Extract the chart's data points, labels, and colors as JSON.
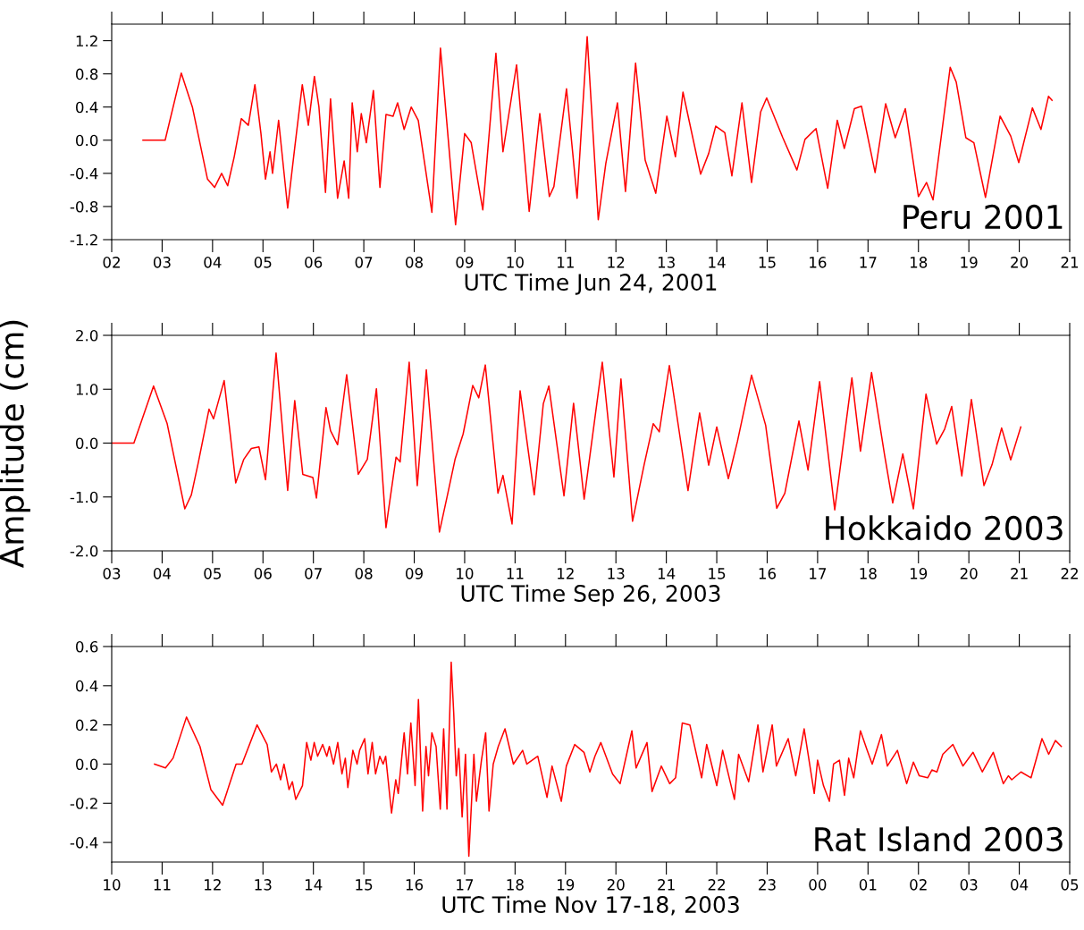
{
  "chart_data": [
    {
      "type": "line",
      "xlabel": "UTC Time Jun 24, 2001",
      "annotations": [
        "Peru 2001"
      ],
      "xlim": [
        2,
        21
      ],
      "ylim": [
        -1.2,
        1.4
      ],
      "xticks": [
        {
          "value": 2,
          "label": "02"
        },
        {
          "value": 3,
          "label": "03"
        },
        {
          "value": 4,
          "label": "04"
        },
        {
          "value": 5,
          "label": "05"
        },
        {
          "value": 6,
          "label": "06"
        },
        {
          "value": 7,
          "label": "07"
        },
        {
          "value": 8,
          "label": "08"
        },
        {
          "value": 9,
          "label": "09"
        },
        10,
        11,
        12,
        13,
        14,
        15,
        16,
        17,
        18,
        19,
        20,
        21
      ],
      "yticks": [
        {
          "value": -1.2,
          "label": "-1.2"
        },
        {
          "value": -0.8,
          "label": "-0.8"
        },
        {
          "value": -0.4,
          "label": "-0.4"
        },
        {
          "value": 0,
          "label": "0.0"
        },
        0.4,
        0.8,
        1.2
      ],
      "series": [
        {
          "color": "#ff0000",
          "x": [
            2.62,
            3.06,
            3.38,
            3.6,
            3.9,
            4.04,
            4.18,
            4.3,
            4.43,
            4.57,
            4.71,
            4.84,
            4.96,
            5.05,
            5.14,
            5.19,
            5.31,
            5.49,
            5.63,
            5.78,
            5.9,
            6.02,
            6.11,
            6.24,
            6.34,
            6.48,
            6.61,
            6.7,
            6.77,
            6.87,
            6.95,
            7.05,
            7.19,
            7.32,
            7.44,
            7.58,
            7.67,
            7.8,
            7.94,
            8.08,
            8.35,
            8.52,
            8.82,
            9.0,
            9.13,
            9.36,
            9.62,
            9.76,
            10.03,
            10.28,
            10.49,
            10.68,
            10.77,
            11.02,
            11.23,
            11.43,
            11.65,
            11.8,
            12.03,
            12.19,
            12.39,
            12.58,
            12.79,
            13.01,
            13.18,
            13.33,
            13.68,
            13.84,
            13.98,
            14.16,
            14.3,
            14.5,
            14.69,
            14.87,
            14.99,
            15.31,
            15.59,
            15.75,
            15.97,
            16.2,
            16.39,
            16.53,
            16.73,
            16.87,
            17.14,
            17.35,
            17.54,
            17.74,
            18.0,
            18.16,
            18.29,
            18.63,
            18.75,
            18.94,
            19.1,
            19.33,
            19.62,
            19.83,
            19.99,
            20.26,
            20.43,
            20.58,
            20.65
          ],
          "values": [
            0.0,
            0.0,
            0.81,
            0.4,
            -0.47,
            -0.57,
            -0.4,
            -0.55,
            -0.2,
            0.26,
            0.18,
            0.67,
            0.08,
            -0.47,
            -0.14,
            -0.4,
            0.24,
            -0.82,
            -0.09,
            0.67,
            0.18,
            0.77,
            0.4,
            -0.63,
            0.5,
            -0.7,
            -0.25,
            -0.7,
            0.45,
            -0.14,
            0.32,
            -0.03,
            0.6,
            -0.57,
            0.31,
            0.29,
            0.45,
            0.13,
            0.4,
            0.24,
            -0.87,
            1.11,
            -1.02,
            0.08,
            -0.03,
            -0.84,
            1.05,
            -0.14,
            0.91,
            -0.86,
            0.32,
            -0.68,
            -0.56,
            0.62,
            -0.7,
            1.25,
            -0.96,
            -0.28,
            0.45,
            -0.62,
            0.93,
            -0.24,
            -0.64,
            0.29,
            -0.2,
            0.58,
            -0.41,
            -0.16,
            0.17,
            0.09,
            -0.43,
            0.45,
            -0.51,
            0.34,
            0.51,
            0.03,
            -0.36,
            0.01,
            0.14,
            -0.58,
            0.24,
            -0.1,
            0.38,
            0.41,
            -0.39,
            0.44,
            0.03,
            0.38,
            -0.68,
            -0.51,
            -0.72,
            0.88,
            0.7,
            0.03,
            -0.03,
            -0.69,
            0.29,
            0.05,
            -0.27,
            0.39,
            0.13,
            0.53,
            0.48
          ]
        }
      ]
    },
    {
      "type": "line",
      "xlabel": "UTC Time Sep 26, 2003",
      "ylabel": "Amplitude (cm)",
      "annotations": [
        "Hokkaido 2003"
      ],
      "xlim": [
        3,
        22
      ],
      "ylim": [
        -2,
        2
      ],
      "xticks": [
        {
          "value": 3,
          "label": "03"
        },
        {
          "value": 4,
          "label": "04"
        },
        {
          "value": 5,
          "label": "05"
        },
        {
          "value": 6,
          "label": "06"
        },
        {
          "value": 7,
          "label": "07"
        },
        {
          "value": 8,
          "label": "08"
        },
        {
          "value": 9,
          "label": "09"
        },
        10,
        11,
        12,
        13,
        14,
        15,
        16,
        17,
        18,
        19,
        20,
        21,
        22
      ],
      "yticks": [
        {
          "value": -2,
          "label": "-2.0"
        },
        {
          "value": -1,
          "label": "-1.0"
        },
        {
          "value": 0,
          "label": "0.0"
        },
        {
          "value": 1,
          "label": "1.0"
        },
        {
          "value": 2,
          "label": "2.0"
        }
      ],
      "series": [
        {
          "color": "#ff0000",
          "x": [
            3.0,
            3.44,
            3.83,
            4.1,
            4.45,
            4.58,
            4.72,
            4.93,
            5.02,
            5.23,
            5.46,
            5.62,
            5.77,
            5.92,
            6.05,
            6.26,
            6.49,
            6.63,
            6.79,
            6.99,
            7.06,
            7.25,
            7.34,
            7.48,
            7.66,
            7.89,
            8.07,
            8.25,
            8.44,
            8.64,
            8.72,
            8.9,
            9.06,
            9.24,
            9.5,
            9.66,
            9.81,
            9.97,
            10.16,
            10.28,
            10.41,
            10.66,
            10.76,
            10.94,
            11.1,
            11.38,
            11.56,
            11.67,
            11.97,
            12.16,
            12.37,
            12.73,
            12.96,
            13.1,
            13.33,
            13.56,
            13.74,
            13.86,
            14.06,
            14.43,
            14.66,
            14.84,
            15.0,
            15.23,
            15.41,
            15.69,
            15.97,
            16.19,
            16.35,
            16.63,
            16.81,
            17.04,
            17.34,
            17.68,
            17.85,
            18.07,
            18.33,
            18.49,
            18.69,
            18.9,
            19.15,
            19.36,
            19.52,
            19.66,
            19.86,
            20.05,
            20.3,
            20.46,
            20.65,
            20.83,
            21.03
          ],
          "values": [
            0,
            0,
            1.06,
            0.36,
            -1.22,
            -0.96,
            -0.35,
            0.63,
            0.45,
            1.16,
            -0.74,
            -0.3,
            -0.1,
            -0.07,
            -0.68,
            1.67,
            -0.88,
            0.79,
            -0.58,
            -0.64,
            -1.02,
            0.66,
            0.23,
            -0.03,
            1.27,
            -0.58,
            -0.3,
            1.01,
            -1.57,
            -0.26,
            -0.35,
            1.5,
            -0.79,
            1.36,
            -1.65,
            -0.96,
            -0.3,
            0.17,
            1.07,
            0.84,
            1.45,
            -0.93,
            -0.6,
            -1.5,
            0.97,
            -0.96,
            0.73,
            1.06,
            -0.98,
            0.74,
            -1.04,
            1.5,
            -0.63,
            1.19,
            -1.45,
            -0.4,
            0.36,
            0.21,
            1.44,
            -0.88,
            0.56,
            -0.41,
            0.3,
            -0.66,
            0.03,
            1.26,
            0.33,
            -1.21,
            -0.93,
            0.41,
            -0.5,
            1.14,
            -1.24,
            1.21,
            -0.15,
            1.31,
            -0.23,
            -1.11,
            -0.2,
            -1.22,
            0.91,
            -0.02,
            0.26,
            0.68,
            -0.61,
            0.81,
            -0.79,
            -0.4,
            0.28,
            -0.31,
            0.3
          ]
        }
      ]
    },
    {
      "type": "line",
      "xlabel": "UTC Time Nov 17-18, 2003",
      "annotations": [
        "Rat Island 2003"
      ],
      "xlim": [
        "2003-11-17T10:00",
        "2003-11-18T05:00"
      ],
      "ylim": [
        -0.5,
        0.6
      ],
      "xticks": [
        {
          "value": "2003-11-17T10:00",
          "label": "10"
        },
        {
          "value": "2003-11-17T11:00",
          "label": "11"
        },
        {
          "value": "2003-11-17T12:00",
          "label": "12"
        },
        {
          "value": "2003-11-17T13:00",
          "label": "13"
        },
        {
          "value": "2003-11-17T14:00",
          "label": "14"
        },
        {
          "value": "2003-11-17T15:00",
          "label": "15"
        },
        {
          "value": "2003-11-17T16:00",
          "label": "16"
        },
        {
          "value": "2003-11-17T17:00",
          "label": "17"
        },
        {
          "value": "2003-11-17T18:00",
          "label": "18"
        },
        {
          "value": "2003-11-17T19:00",
          "label": "19"
        },
        {
          "value": "2003-11-17T20:00",
          "label": "20"
        },
        {
          "value": "2003-11-17T21:00",
          "label": "21"
        },
        {
          "value": "2003-11-17T22:00",
          "label": "22"
        },
        {
          "value": "2003-11-17T23:00",
          "label": "23"
        },
        {
          "value": "2003-11-18T00:00",
          "label": "00"
        },
        {
          "value": "2003-11-18T01:00",
          "label": "01"
        },
        {
          "value": "2003-11-18T02:00",
          "label": "02"
        },
        {
          "value": "2003-11-18T03:00",
          "label": "03"
        },
        {
          "value": "2003-11-18T04:00",
          "label": "04"
        },
        {
          "value": "2003-11-18T05:00",
          "label": "05"
        }
      ],
      "yticks": [
        {
          "value": -0.4,
          "label": "-0.4"
        },
        {
          "value": -0.2,
          "label": "-0.2"
        },
        {
          "value": 0,
          "label": "0.0"
        },
        0.2,
        0.4,
        0.6
      ],
      "series": [
        {
          "color": "#ff0000",
          "x": [
            "2003-11-17T10:51",
            "2003-11-17T11:04",
            "2003-11-17T11:13",
            "2003-11-17T11:29",
            "2003-11-17T11:45",
            "2003-11-17T11:58",
            "2003-11-17T12:12",
            "2003-11-17T12:28",
            "2003-11-17T12:35",
            "2003-11-17T12:53",
            "2003-11-17T13:05",
            "2003-11-17T13:10",
            "2003-11-17T13:16",
            "2003-11-17T13:21",
            "2003-11-17T13:25",
            "2003-11-17T13:31",
            "2003-11-17T13:35",
            "2003-11-17T13:39",
            "2003-11-17T13:47",
            "2003-11-17T13:52",
            "2003-11-17T13:57",
            "2003-11-17T14:01",
            "2003-11-17T14:05",
            "2003-11-17T14:11",
            "2003-11-17T14:16",
            "2003-11-17T14:19",
            "2003-11-17T14:24",
            "2003-11-17T14:29",
            "2003-11-17T14:34",
            "2003-11-17T14:38",
            "2003-11-17T14:41",
            "2003-11-17T14:47",
            "2003-11-17T14:52",
            "2003-11-17T14:55",
            "2003-11-17T15:01",
            "2003-11-17T15:05",
            "2003-11-17T15:10",
            "2003-11-17T15:14",
            "2003-11-17T15:19",
            "2003-11-17T15:23",
            "2003-11-17T15:26",
            "2003-11-17T15:33",
            "2003-11-17T15:38",
            "2003-11-17T15:41",
            "2003-11-17T15:48",
            "2003-11-17T15:52",
            "2003-11-17T15:56",
            "2003-11-17T16:01",
            "2003-11-17T16:05",
            "2003-11-17T16:10",
            "2003-11-17T16:14",
            "2003-11-17T16:17",
            "2003-11-17T16:21",
            "2003-11-17T16:26",
            "2003-11-17T16:31",
            "2003-11-17T16:35",
            "2003-11-17T16:39",
            "2003-11-17T16:44",
            "2003-11-17T16:47",
            "2003-11-17T16:50",
            "2003-11-17T16:53",
            "2003-11-17T16:57",
            "2003-11-17T17:01",
            "2003-11-17T17:05",
            "2003-11-17T17:11",
            "2003-11-17T17:14",
            "2003-11-17T17:20",
            "2003-11-17T17:25",
            "2003-11-17T17:29",
            "2003-11-17T17:34",
            "2003-11-17T17:40",
            "2003-11-17T17:48",
            "2003-11-17T17:58",
            "2003-11-17T18:09",
            "2003-11-17T18:14",
            "2003-11-17T18:27",
            "2003-11-17T18:38",
            "2003-11-17T18:44",
            "2003-11-17T18:55",
            "2003-11-17T19:01",
            "2003-11-17T19:11",
            "2003-11-17T19:22",
            "2003-11-17T19:29",
            "2003-11-17T19:35",
            "2003-11-17T19:42",
            "2003-11-17T19:56",
            "2003-11-17T20:05",
            "2003-11-17T20:19",
            "2003-11-17T20:24",
            "2003-11-17T20:37",
            "2003-11-17T20:43",
            "2003-11-17T20:54",
            "2003-11-17T21:04",
            "2003-11-17T21:11",
            "2003-11-17T21:19",
            "2003-11-17T21:28",
            "2003-11-17T21:42",
            "2003-11-17T21:48",
            "2003-11-17T22:00",
            "2003-11-17T22:07",
            "2003-11-17T22:21",
            "2003-11-17T22:26",
            "2003-11-17T22:38",
            "2003-11-17T22:49",
            "2003-11-17T22:55",
            "2003-11-17T23:06",
            "2003-11-17T23:11",
            "2003-11-17T23:25",
            "2003-11-17T23:34",
            "2003-11-17T23:44",
            "2003-11-17T23:56",
            "2003-11-18T00:00",
            "2003-11-18T00:07",
            "2003-11-18T00:14",
            "2003-11-18T00:19",
            "2003-11-18T00:26",
            "2003-11-18T00:32",
            "2003-11-18T00:37",
            "2003-11-18T00:43",
            "2003-11-18T00:51",
            "2003-11-18T00:59",
            "2003-11-18T01:05",
            "2003-11-18T01:16",
            "2003-11-18T01:23",
            "2003-11-18T01:35",
            "2003-11-18T01:46",
            "2003-11-18T01:54",
            "2003-11-18T02:01",
            "2003-11-18T02:11",
            "2003-11-18T02:16",
            "2003-11-18T02:22",
            "2003-11-18T02:29",
            "2003-11-18T02:41",
            "2003-11-18T02:53",
            "2003-11-18T03:05",
            "2003-11-18T03:16",
            "2003-11-18T03:29",
            "2003-11-18T03:41",
            "2003-11-18T03:47",
            "2003-11-18T03:51",
            "2003-11-18T04:02",
            "2003-11-18T04:14",
            "2003-11-18T04:27",
            "2003-11-18T04:35",
            "2003-11-18T04:43",
            "2003-11-18T04:50"
          ],
          "values": [
            0.0,
            -0.02,
            0.03,
            0.24,
            0.09,
            -0.13,
            -0.21,
            0.0,
            0.0,
            0.2,
            0.1,
            -0.04,
            0.0,
            -0.08,
            0.0,
            -0.13,
            -0.09,
            -0.18,
            -0.11,
            0.11,
            0.02,
            0.11,
            0.04,
            0.1,
            0.04,
            0.09,
            0.0,
            0.11,
            -0.05,
            0.03,
            -0.12,
            0.07,
            0.0,
            0.07,
            0.13,
            -0.05,
            0.11,
            -0.05,
            0.04,
            0.0,
            0.04,
            -0.25,
            -0.08,
            -0.15,
            0.16,
            -0.05,
            0.21,
            -0.11,
            0.33,
            -0.24,
            0.09,
            -0.06,
            0.16,
            0.09,
            -0.23,
            0.18,
            -0.23,
            0.52,
            0.26,
            -0.06,
            0.08,
            -0.27,
            0.05,
            -0.47,
            0.05,
            -0.19,
            0.02,
            0.16,
            -0.24,
            0.0,
            0.09,
            0.18,
            0.0,
            0.07,
            0.0,
            0.04,
            -0.17,
            -0.01,
            -0.19,
            -0.01,
            0.1,
            0.06,
            -0.04,
            0.04,
            0.11,
            -0.05,
            -0.1,
            0.17,
            -0.02,
            0.11,
            -0.14,
            -0.01,
            -0.1,
            -0.07,
            0.21,
            0.2,
            -0.07,
            0.1,
            -0.11,
            0.07,
            -0.18,
            0.05,
            -0.09,
            0.2,
            -0.04,
            0.2,
            -0.01,
            0.13,
            -0.06,
            0.18,
            -0.15,
            0.02,
            -0.11,
            -0.19,
            0.0,
            0.02,
            -0.16,
            0.03,
            -0.07,
            0.17,
            0.07,
            0.0,
            0.15,
            -0.01,
            0.07,
            -0.1,
            0.01,
            -0.06,
            -0.07,
            -0.03,
            -0.04,
            0.05,
            0.1,
            -0.01,
            0.06,
            -0.04,
            0.06,
            -0.1,
            -0.06,
            -0.08,
            -0.04,
            -0.07,
            0.13,
            0.05,
            0.12,
            0.09
          ]
        }
      ]
    }
  ]
}
